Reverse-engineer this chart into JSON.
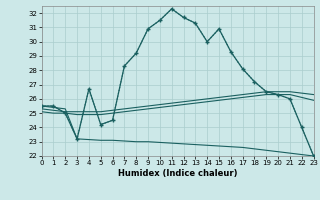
{
  "bg_color": "#cce8e8",
  "line_color": "#1a6060",
  "xlabel": "Humidex (Indice chaleur)",
  "xlim": [
    0,
    23
  ],
  "ylim": [
    22,
    32.5
  ],
  "yticks": [
    22,
    23,
    24,
    25,
    26,
    27,
    28,
    29,
    30,
    31,
    32
  ],
  "xticks": [
    0,
    1,
    2,
    3,
    4,
    5,
    6,
    7,
    8,
    9,
    10,
    11,
    12,
    13,
    14,
    15,
    16,
    17,
    18,
    19,
    20,
    21,
    22,
    23
  ],
  "curve_main": [
    25.5,
    25.5,
    25.0,
    23.2,
    26.7,
    24.2,
    24.5,
    28.3,
    29.2,
    30.9,
    31.5,
    32.3,
    31.7,
    31.3,
    30.0,
    30.9,
    29.3,
    28.1,
    27.2,
    26.5,
    26.3,
    26.0,
    24.0,
    22.0
  ],
  "curve_dot": [
    25.5,
    25.5,
    25.0,
    23.2,
    26.7,
    24.2,
    24.5,
    28.3,
    29.2,
    30.9,
    31.5,
    32.3,
    31.7,
    31.3,
    30.0,
    30.9,
    29.3,
    28.1,
    27.2,
    26.5,
    26.3,
    26.0,
    24.0,
    22.0
  ],
  "curve_rise1": [
    25.3,
    25.2,
    25.1,
    25.1,
    25.1,
    25.1,
    25.2,
    25.3,
    25.4,
    25.5,
    25.6,
    25.7,
    25.8,
    25.9,
    26.0,
    26.1,
    26.2,
    26.3,
    26.4,
    26.5,
    26.5,
    26.5,
    26.4,
    26.3
  ],
  "curve_rise2": [
    25.1,
    25.0,
    25.0,
    24.9,
    24.9,
    24.9,
    25.0,
    25.1,
    25.2,
    25.3,
    25.4,
    25.5,
    25.6,
    25.7,
    25.8,
    25.9,
    26.0,
    26.1,
    26.2,
    26.3,
    26.3,
    26.3,
    26.1,
    25.9
  ],
  "curve_low": [
    25.5,
    25.4,
    25.3,
    23.2,
    23.15,
    23.1,
    23.1,
    23.05,
    23.0,
    23.0,
    22.95,
    22.9,
    22.85,
    22.8,
    22.75,
    22.7,
    22.65,
    22.6,
    22.5,
    22.4,
    22.3,
    22.2,
    22.1,
    22.0
  ]
}
